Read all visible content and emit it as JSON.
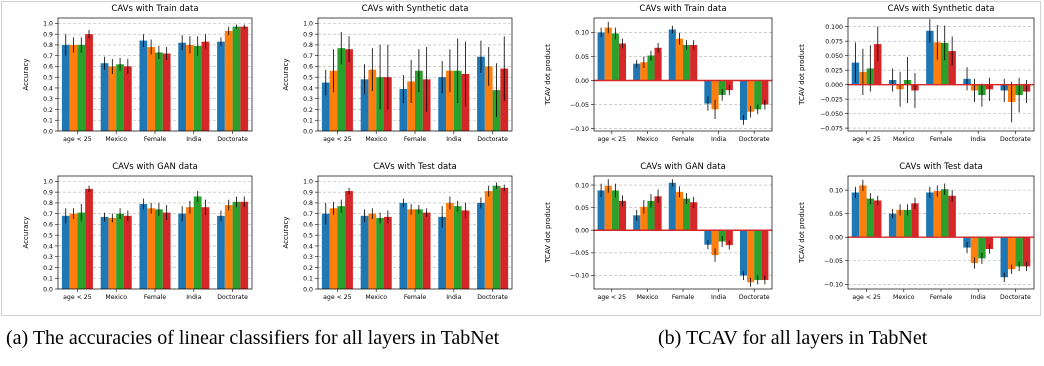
{
  "captions": {
    "a": "(a) The accuracies of linear classifiers for all layers in TabNet",
    "b": "(b) TCAV for all layers in TabNet"
  },
  "colors": {
    "series": [
      "#1f77b4",
      "#ff7f0e",
      "#2ca02c",
      "#d62728"
    ],
    "zero_line": "#d62728",
    "grid": "#b0b0b0"
  },
  "chart_data": [
    {
      "type": "bar",
      "title": "CAVs with Train data",
      "xlabel": "",
      "ylabel": "Accuracy",
      "ylim": [
        0,
        1.05
      ],
      "yticks": [
        0.0,
        0.1,
        0.2,
        0.3,
        0.4,
        0.5,
        0.6,
        0.7,
        0.8,
        0.9,
        1.0
      ],
      "grid": true,
      "categories": [
        "age < 25",
        "Mexico",
        "Female",
        "India",
        "Doctorate"
      ],
      "series": [
        {
          "values": [
            0.8,
            0.63,
            0.84,
            0.82,
            0.83
          ],
          "errors": [
            0.1,
            0.06,
            0.06,
            0.07,
            0.04
          ]
        },
        {
          "values": [
            0.8,
            0.6,
            0.78,
            0.8,
            0.93
          ],
          "errors": [
            0.07,
            0.07,
            0.07,
            0.08,
            0.04
          ]
        },
        {
          "values": [
            0.8,
            0.62,
            0.73,
            0.79,
            0.97
          ],
          "errors": [
            0.07,
            0.06,
            0.06,
            0.09,
            0.02
          ]
        },
        {
          "values": [
            0.9,
            0.6,
            0.72,
            0.83,
            0.97
          ],
          "errors": [
            0.04,
            0.07,
            0.06,
            0.07,
            0.02
          ]
        }
      ]
    },
    {
      "type": "bar",
      "title": "CAVs with Synthetic data",
      "xlabel": "",
      "ylabel": "Accuracy",
      "ylim": [
        0,
        1.05
      ],
      "yticks": [
        0.0,
        0.1,
        0.2,
        0.3,
        0.4,
        0.5,
        0.6,
        0.7,
        0.8,
        0.9,
        1.0
      ],
      "grid": true,
      "categories": [
        "age < 25",
        "Mexico",
        "Female",
        "India",
        "Doctorate"
      ],
      "series": [
        {
          "values": [
            0.45,
            0.48,
            0.39,
            0.5,
            0.69
          ],
          "errors": [
            0.12,
            0.14,
            0.13,
            0.15,
            0.15
          ]
        },
        {
          "values": [
            0.56,
            0.57,
            0.46,
            0.56,
            0.6
          ],
          "errors": [
            0.2,
            0.2,
            0.2,
            0.2,
            0.18
          ]
        },
        {
          "values": [
            0.77,
            0.5,
            0.56,
            0.56,
            0.38
          ],
          "errors": [
            0.15,
            0.3,
            0.2,
            0.3,
            0.25
          ]
        },
        {
          "values": [
            0.76,
            0.5,
            0.48,
            0.53,
            0.58
          ],
          "errors": [
            0.12,
            0.3,
            0.3,
            0.3,
            0.3
          ]
        }
      ]
    },
    {
      "type": "bar",
      "title": "CAVs with GAN data",
      "xlabel": "",
      "ylabel": "Accuracy",
      "ylim": [
        0,
        1.05
      ],
      "yticks": [
        0.0,
        0.1,
        0.2,
        0.3,
        0.4,
        0.5,
        0.6,
        0.7,
        0.8,
        0.9,
        1.0
      ],
      "grid": true,
      "categories": [
        "age < 25",
        "Mexico",
        "Female",
        "India",
        "Doctorate"
      ],
      "series": [
        {
          "values": [
            0.68,
            0.67,
            0.79,
            0.7,
            0.68
          ],
          "errors": [
            0.07,
            0.04,
            0.05,
            0.07,
            0.05
          ]
        },
        {
          "values": [
            0.7,
            0.66,
            0.75,
            0.76,
            0.78
          ],
          "errors": [
            0.05,
            0.04,
            0.05,
            0.06,
            0.05
          ]
        },
        {
          "values": [
            0.71,
            0.7,
            0.74,
            0.86,
            0.81
          ],
          "errors": [
            0.08,
            0.05,
            0.06,
            0.05,
            0.05
          ]
        },
        {
          "values": [
            0.93,
            0.68,
            0.71,
            0.76,
            0.81
          ],
          "errors": [
            0.03,
            0.05,
            0.07,
            0.07,
            0.05
          ]
        }
      ]
    },
    {
      "type": "bar",
      "title": "CAVs with Test data",
      "xlabel": "",
      "ylabel": "Accuracy",
      "ylim": [
        0,
        1.05
      ],
      "yticks": [
        0.0,
        0.1,
        0.2,
        0.3,
        0.4,
        0.5,
        0.6,
        0.7,
        0.8,
        0.9,
        1.0
      ],
      "grid": true,
      "categories": [
        "age < 25",
        "Mexico",
        "Female",
        "India",
        "Doctorate"
      ],
      "series": [
        {
          "values": [
            0.7,
            0.68,
            0.8,
            0.67,
            0.8
          ],
          "errors": [
            0.1,
            0.06,
            0.04,
            0.1,
            0.05
          ]
        },
        {
          "values": [
            0.75,
            0.7,
            0.74,
            0.8,
            0.91
          ],
          "errors": [
            0.06,
            0.05,
            0.05,
            0.06,
            0.05
          ]
        },
        {
          "values": [
            0.77,
            0.66,
            0.74,
            0.77,
            0.96
          ],
          "errors": [
            0.06,
            0.05,
            0.04,
            0.05,
            0.03
          ]
        },
        {
          "values": [
            0.91,
            0.67,
            0.71,
            0.73,
            0.94
          ],
          "errors": [
            0.03,
            0.06,
            0.04,
            0.07,
            0.03
          ]
        }
      ]
    },
    {
      "type": "bar",
      "title": "CAVs with Train data",
      "xlabel": "",
      "ylabel": "TCAV dot product",
      "ylim": [
        -0.105,
        0.13
      ],
      "yticks": [
        -0.1,
        -0.05,
        0.0,
        0.05,
        0.1
      ],
      "ytick_labels": [
        "−0.10",
        "−0.05",
        "0.00",
        "0.05",
        "0.10"
      ],
      "grid": true,
      "categories": [
        "age < 25",
        "Mexico",
        "Female",
        "India",
        "Doctorate"
      ],
      "series": [
        {
          "values": [
            0.1,
            0.035,
            0.106,
            -0.048,
            -0.082
          ],
          "errors": [
            0.01,
            0.008,
            0.008,
            0.015,
            0.01
          ]
        },
        {
          "values": [
            0.11,
            0.038,
            0.087,
            -0.06,
            -0.065
          ],
          "errors": [
            0.012,
            0.012,
            0.012,
            0.02,
            0.012
          ]
        },
        {
          "values": [
            0.098,
            0.052,
            0.074,
            -0.03,
            -0.06
          ],
          "errors": [
            0.012,
            0.01,
            0.01,
            0.012,
            0.01
          ]
        },
        {
          "values": [
            0.077,
            0.068,
            0.074,
            -0.02,
            -0.05
          ],
          "errors": [
            0.01,
            0.01,
            0.01,
            0.01,
            0.01
          ]
        }
      ]
    },
    {
      "type": "bar",
      "title": "CAVs with Synthetic data",
      "xlabel": "",
      "ylabel": "TCAV dot product",
      "ylim": [
        -0.08,
        0.115
      ],
      "yticks": [
        -0.075,
        -0.05,
        -0.025,
        0.0,
        0.025,
        0.05,
        0.075,
        0.1
      ],
      "ytick_labels": [
        "−0.075",
        "−0.050",
        "−0.025",
        "0.000",
        "0.025",
        "0.050",
        "0.075",
        "0.100"
      ],
      "grid": true,
      "categories": [
        "age < 25",
        "Mexico",
        "Female",
        "India",
        "Doctorate"
      ],
      "series": [
        {
          "values": [
            0.038,
            0.008,
            0.093,
            0.01,
            -0.01
          ],
          "errors": [
            0.035,
            0.02,
            0.02,
            0.02,
            0.02
          ]
        },
        {
          "values": [
            0.022,
            -0.008,
            0.073,
            -0.01,
            -0.03
          ],
          "errors": [
            0.04,
            0.03,
            0.03,
            0.02,
            0.035
          ]
        },
        {
          "values": [
            0.028,
            0.008,
            0.072,
            -0.018,
            -0.018
          ],
          "errors": [
            0.04,
            0.04,
            0.03,
            0.02,
            0.03
          ]
        },
        {
          "values": [
            0.07,
            -0.01,
            0.058,
            -0.008,
            -0.012
          ],
          "errors": [
            0.03,
            0.03,
            0.025,
            0.02,
            0.02
          ]
        }
      ]
    },
    {
      "type": "bar",
      "title": "CAVs with GAN data",
      "xlabel": "",
      "ylabel": "TCAV dot product",
      "ylim": [
        -0.13,
        0.12
      ],
      "yticks": [
        -0.1,
        -0.05,
        0.0,
        0.05,
        0.1
      ],
      "ytick_labels": [
        "−0.10",
        "−0.05",
        "0.00",
        "0.05",
        "0.10"
      ],
      "grid": true,
      "categories": [
        "age < 25",
        "Mexico",
        "Female",
        "India",
        "Doctorate"
      ],
      "series": [
        {
          "values": [
            0.088,
            0.033,
            0.105,
            -0.032,
            -0.1
          ],
          "errors": [
            0.015,
            0.012,
            0.008,
            0.01,
            0.01
          ]
        },
        {
          "values": [
            0.098,
            0.052,
            0.085,
            -0.055,
            -0.115
          ],
          "errors": [
            0.015,
            0.015,
            0.012,
            0.015,
            0.01
          ]
        },
        {
          "values": [
            0.088,
            0.065,
            0.07,
            -0.025,
            -0.11
          ],
          "errors": [
            0.015,
            0.015,
            0.012,
            0.012,
            0.01
          ]
        },
        {
          "values": [
            0.065,
            0.075,
            0.062,
            -0.033,
            -0.11
          ],
          "errors": [
            0.012,
            0.015,
            0.012,
            0.01,
            0.01
          ]
        }
      ]
    },
    {
      "type": "bar",
      "title": "CAVs with Test data",
      "xlabel": "",
      "ylabel": "TCAV dot product",
      "ylim": [
        -0.11,
        0.13
      ],
      "yticks": [
        -0.1,
        -0.05,
        0.0,
        0.05,
        0.1
      ],
      "ytick_labels": [
        "−0.10",
        "−0.05",
        "0.00",
        "0.05",
        "0.10"
      ],
      "grid": true,
      "categories": [
        "age < 25",
        "Mexico",
        "Female",
        "India",
        "Doctorate"
      ],
      "series": [
        {
          "values": [
            0.095,
            0.05,
            0.095,
            -0.022,
            -0.085
          ],
          "errors": [
            0.012,
            0.01,
            0.012,
            0.012,
            0.01
          ]
        },
        {
          "values": [
            0.11,
            0.058,
            0.098,
            -0.055,
            -0.068
          ],
          "errors": [
            0.012,
            0.012,
            0.012,
            0.012,
            0.01
          ]
        },
        {
          "values": [
            0.082,
            0.058,
            0.102,
            -0.045,
            -0.062
          ],
          "errors": [
            0.012,
            0.012,
            0.012,
            0.012,
            0.01
          ]
        },
        {
          "values": [
            0.078,
            0.072,
            0.088,
            -0.025,
            -0.062
          ],
          "errors": [
            0.01,
            0.012,
            0.012,
            0.01,
            0.01
          ]
        }
      ]
    }
  ]
}
